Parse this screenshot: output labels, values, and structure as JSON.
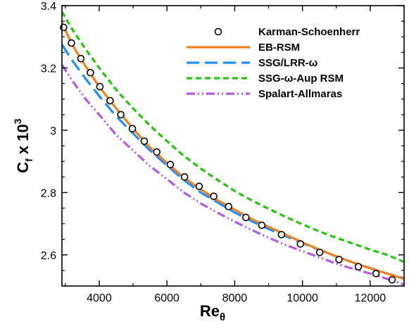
{
  "chart_data": {
    "type": "line",
    "xlabel": {
      "main": "Re",
      "sub": "θ"
    },
    "ylabel": {
      "main": "C",
      "sub": "f",
      "rest": " x 10",
      "sup": "3"
    },
    "xlim": [
      2900,
      13000
    ],
    "ylim": [
      2.5,
      3.4
    ],
    "xticks": [
      4000,
      6000,
      8000,
      10000,
      12000
    ],
    "xtick_labels": [
      "4000",
      "6000",
      "8000",
      "10000",
      "12000"
    ],
    "yticks": [
      2.6,
      2.8,
      3.0,
      3.2,
      3.4
    ],
    "ytick_labels": [
      "2.6",
      "2.8",
      "3",
      "3.2",
      "3.4"
    ],
    "legend_position": "top-right",
    "grid": false,
    "series": [
      {
        "name": "Karman-Schoenherr",
        "style": "markers",
        "color": "#000000",
        "x": [
          2950,
          3180,
          3460,
          3740,
          4020,
          4320,
          4640,
          4980,
          5330,
          5700,
          6100,
          6520,
          6950,
          7380,
          7820,
          8330,
          8800,
          9380,
          9940,
          10510,
          11080,
          11650,
          12170,
          12650
        ],
        "y": [
          3.33,
          3.28,
          3.23,
          3.185,
          3.14,
          3.095,
          3.05,
          3.005,
          2.965,
          2.93,
          2.89,
          2.85,
          2.82,
          2.788,
          2.755,
          2.72,
          2.695,
          2.665,
          2.635,
          2.608,
          2.585,
          2.562,
          2.54,
          2.52
        ]
      },
      {
        "name": "EB-RSM",
        "style": "solid",
        "color": "#f47f1c",
        "x": [
          2900,
          3200,
          3600,
          4000,
          4500,
          5000,
          5500,
          6000,
          6500,
          7000,
          7500,
          8000,
          8500,
          9000,
          9500,
          10000,
          10500,
          11000,
          11500,
          12000,
          12500,
          13000
        ],
        "y": [
          3.345,
          3.275,
          3.205,
          3.14,
          3.07,
          3.005,
          2.945,
          2.895,
          2.848,
          2.81,
          2.775,
          2.745,
          2.715,
          2.69,
          2.665,
          2.64,
          2.617,
          2.595,
          2.575,
          2.557,
          2.54,
          2.523
        ]
      },
      {
        "name": "SSG/LRR-ω",
        "style": "longdash",
        "color": "#1e90ff",
        "x": [
          2900,
          3200,
          3600,
          4000,
          4500,
          5000,
          5500,
          6000,
          6500,
          7000,
          7500,
          8000,
          8500,
          9000,
          9500,
          10000,
          10500,
          11000,
          11500,
          12000,
          12500,
          13000
        ],
        "y": [
          3.275,
          3.225,
          3.165,
          3.11,
          3.045,
          2.99,
          2.935,
          2.887,
          2.84,
          2.8,
          2.768,
          2.736,
          2.708,
          2.683,
          2.66,
          2.638,
          2.615,
          2.595,
          2.575,
          2.558,
          2.54,
          2.525
        ]
      },
      {
        "name": "SSG-ω-Aup RSM",
        "style": "shortdash",
        "color": "#22c60c",
        "x": [
          2900,
          3200,
          3600,
          4000,
          4500,
          5000,
          5500,
          6000,
          6500,
          7000,
          7500,
          8000,
          8500,
          9000,
          9500,
          10000,
          10500,
          11000,
          11500,
          12000,
          12500,
          13000
        ],
        "y": [
          3.38,
          3.325,
          3.26,
          3.2,
          3.13,
          3.07,
          3.015,
          2.965,
          2.918,
          2.877,
          2.84,
          2.805,
          2.775,
          2.748,
          2.722,
          2.698,
          2.675,
          2.655,
          2.636,
          2.617,
          2.6,
          2.577
        ]
      },
      {
        "name": "Spalart-Allmaras",
        "style": "dashdotdot",
        "color": "#b25ce6",
        "x": [
          2900,
          3200,
          3600,
          4000,
          4500,
          5000,
          5500,
          6000,
          6500,
          7000,
          7500,
          8000,
          8500,
          9000,
          9500,
          10000,
          10500,
          11000,
          11500,
          12000,
          12500,
          13000
        ],
        "y": [
          3.21,
          3.16,
          3.1,
          3.05,
          2.985,
          2.935,
          2.885,
          2.843,
          2.8,
          2.765,
          2.735,
          2.707,
          2.68,
          2.655,
          2.632,
          2.612,
          2.592,
          2.572,
          2.555,
          2.54,
          2.523,
          2.505
        ]
      }
    ]
  }
}
